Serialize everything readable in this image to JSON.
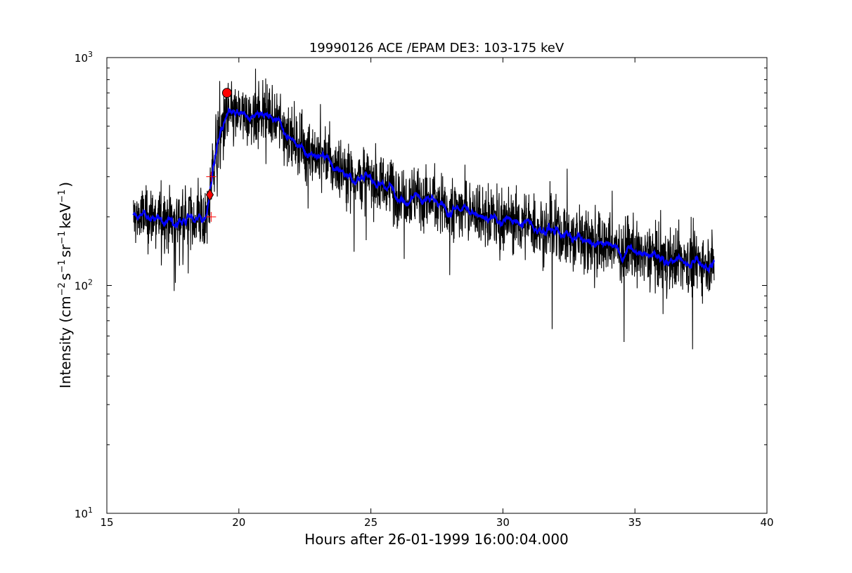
{
  "chart_data": {
    "type": "line",
    "title": "19990126 ACE /EPAM DE3: 103-175 keV",
    "xlabel": "Hours after 26-01-1999 16:00:04.000",
    "ylabel": {
      "prefix": "Intensity (cm",
      "e1": "−2",
      "mid1": "s",
      "e2": "−1",
      "mid2": "sr",
      "e3": "−1",
      "mid3": "keV",
      "e4": "−1",
      "suffix": ")"
    },
    "xlim": [
      15,
      40
    ],
    "ylim": [
      10,
      1000
    ],
    "yscale": "log",
    "grid": false,
    "x_ticks": [
      {
        "value": 15,
        "label": "15"
      },
      {
        "value": 20,
        "label": "20"
      },
      {
        "value": 25,
        "label": "25"
      },
      {
        "value": 30,
        "label": "30"
      },
      {
        "value": 35,
        "label": "35"
      },
      {
        "value": 40,
        "label": "40"
      }
    ],
    "y_ticks": [
      {
        "value": 10,
        "base": "10",
        "exp": "1"
      },
      {
        "value": 100,
        "base": "10",
        "exp": "2"
      },
      {
        "value": 1000,
        "base": "10",
        "exp": "3"
      }
    ],
    "series": [
      {
        "role": "raw",
        "color": "#000000",
        "x_range": [
          16.0,
          38.0
        ],
        "envelope": [
          [
            16.0,
            200
          ],
          [
            18.75,
            195
          ],
          [
            18.9,
            240
          ],
          [
            19.05,
            360
          ],
          [
            19.3,
            450
          ],
          [
            19.55,
            560
          ],
          [
            20.0,
            560
          ],
          [
            20.4,
            520
          ],
          [
            20.7,
            580
          ],
          [
            21.5,
            520
          ],
          [
            22.0,
            440
          ],
          [
            23.0,
            370
          ],
          [
            24.0,
            320
          ],
          [
            25.0,
            290
          ],
          [
            26.0,
            260
          ],
          [
            27.0,
            240
          ],
          [
            28.0,
            220
          ],
          [
            29.0,
            210
          ],
          [
            30.0,
            195
          ],
          [
            31.0,
            185
          ],
          [
            32.0,
            170
          ],
          [
            33.0,
            160
          ],
          [
            34.0,
            148
          ],
          [
            35.0,
            138
          ],
          [
            36.0,
            132
          ],
          [
            37.0,
            128
          ],
          [
            38.0,
            128
          ]
        ],
        "spread_log10": 0.07
      },
      {
        "role": "smoothed",
        "color": "#0000ff",
        "x_range": [
          16.0,
          38.0
        ]
      }
    ],
    "markers": [
      {
        "shape": "circle",
        "x": 19.55,
        "y": 700,
        "color": "#ff0000"
      },
      {
        "shape": "diamond",
        "x": 18.9,
        "y": 250,
        "color": "#ff0000"
      },
      {
        "shape": "plus",
        "x": 18.95,
        "y": 300,
        "color": "#ff0000"
      },
      {
        "shape": "plus",
        "x": 18.95,
        "y": 200,
        "color": "#ff0000"
      }
    ]
  }
}
